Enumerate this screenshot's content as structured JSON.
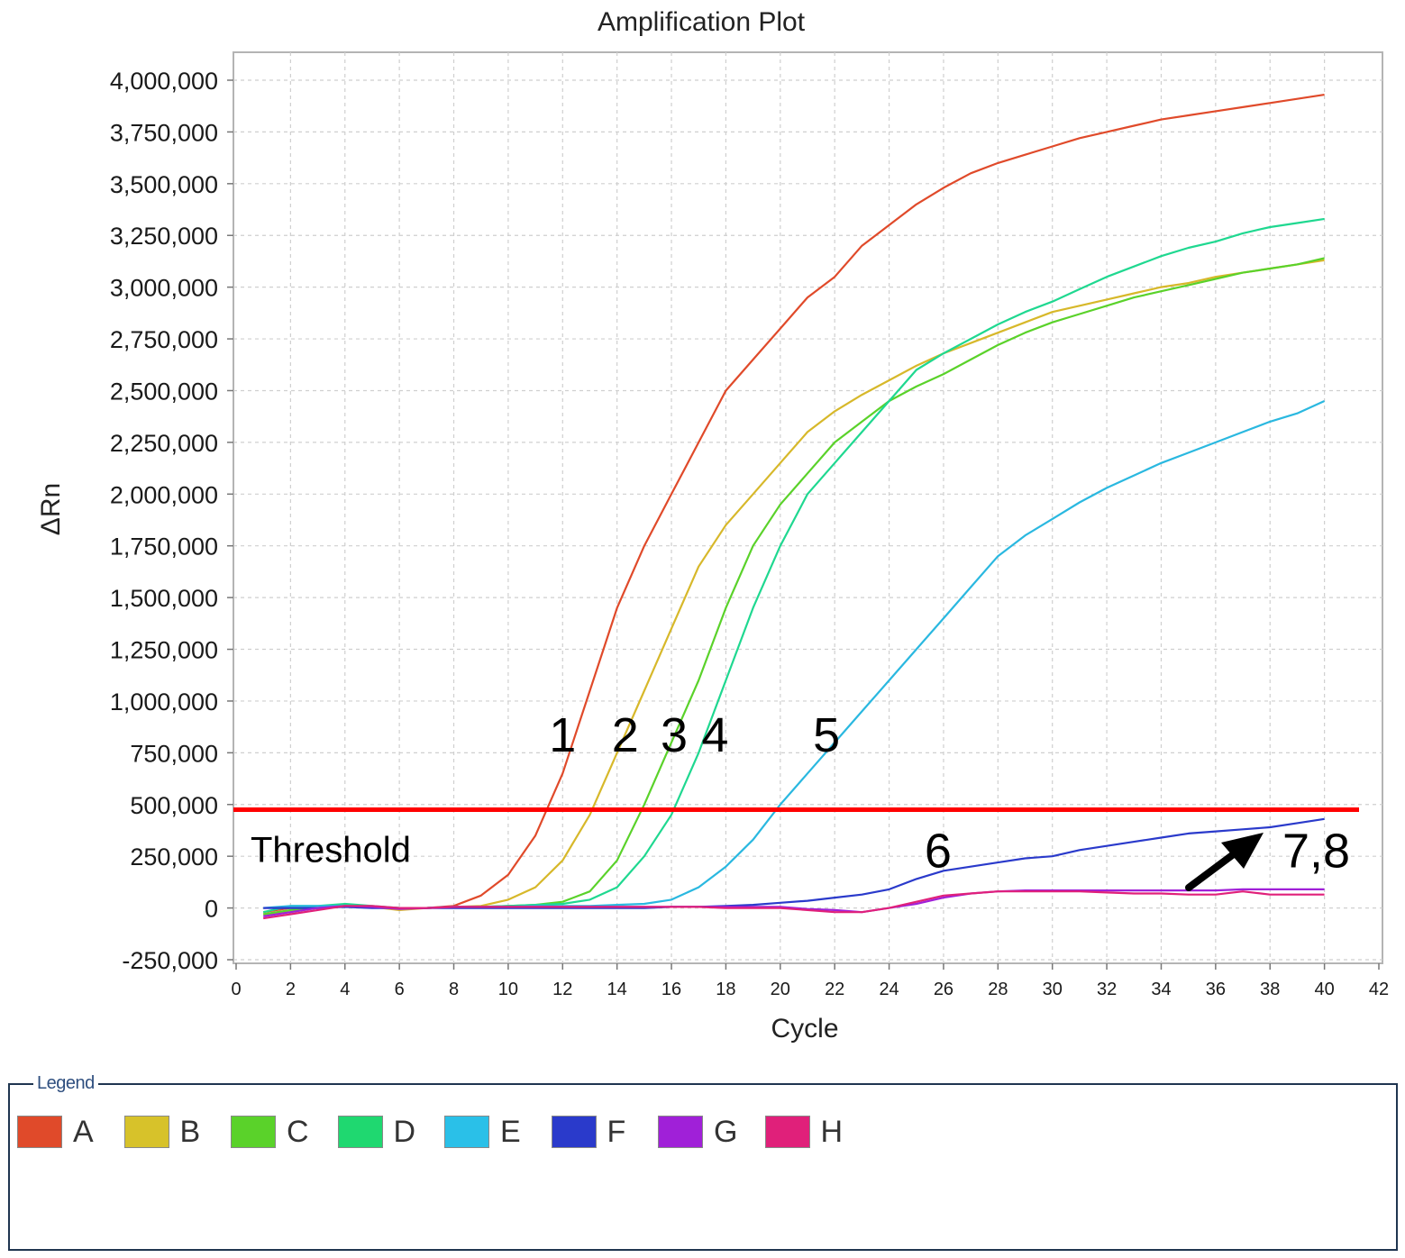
{
  "chart_data": {
    "type": "line",
    "title": "Amplification Plot",
    "xlabel": "Cycle",
    "ylabel": "ΔRn",
    "xlim": [
      0,
      42
    ],
    "ylim": [
      -250000,
      4000000
    ],
    "x_ticks": [
      "0",
      "2",
      "4",
      "6",
      "8",
      "10",
      "12",
      "14",
      "16",
      "18",
      "20",
      "22",
      "24",
      "26",
      "28",
      "30",
      "32",
      "34",
      "36",
      "38",
      "40",
      "42"
    ],
    "y_ticks": [
      "4,000,000",
      "3,750,000",
      "3,500,000",
      "3,250,000",
      "3,000,000",
      "2,750,000",
      "2,500,000",
      "2,250,000",
      "2,000,000",
      "1,750,000",
      "1,500,000",
      "1,250,000",
      "1,000,000",
      "750,000",
      "500,000",
      "250,000",
      "0",
      "-250,000"
    ],
    "grid": true,
    "x": [
      1,
      2,
      3,
      4,
      5,
      6,
      7,
      8,
      9,
      10,
      11,
      12,
      13,
      14,
      15,
      16,
      17,
      18,
      19,
      20,
      21,
      22,
      23,
      24,
      25,
      26,
      27,
      28,
      29,
      30,
      31,
      32,
      33,
      34,
      35,
      36,
      37,
      38,
      39,
      40
    ],
    "series": [
      {
        "name": "A",
        "color": "#e04a2a",
        "values": [
          -20000,
          0,
          0,
          10000,
          5000,
          0,
          0,
          10000,
          60000,
          160000,
          350000,
          650000,
          1050000,
          1450000,
          1750000,
          2000000,
          2250000,
          2500000,
          2650000,
          2800000,
          2950000,
          3050000,
          3200000,
          3300000,
          3400000,
          3480000,
          3550000,
          3600000,
          3640000,
          3680000,
          3720000,
          3750000,
          3780000,
          3810000,
          3830000,
          3850000,
          3870000,
          3890000,
          3910000,
          3930000
        ]
      },
      {
        "name": "B",
        "color": "#d7b82a",
        "values": [
          -30000,
          -20000,
          0,
          10000,
          5000,
          -10000,
          0,
          5000,
          10000,
          40000,
          100000,
          230000,
          450000,
          750000,
          1050000,
          1350000,
          1650000,
          1850000,
          2000000,
          2150000,
          2300000,
          2400000,
          2480000,
          2550000,
          2620000,
          2680000,
          2730000,
          2780000,
          2830000,
          2880000,
          2910000,
          2940000,
          2970000,
          3000000,
          3020000,
          3050000,
          3070000,
          3090000,
          3110000,
          3130000
        ]
      },
      {
        "name": "C",
        "color": "#5ad22a",
        "values": [
          -30000,
          -10000,
          0,
          10000,
          5000,
          0,
          0,
          5000,
          5000,
          10000,
          15000,
          30000,
          80000,
          230000,
          500000,
          800000,
          1100000,
          1450000,
          1750000,
          1950000,
          2100000,
          2250000,
          2350000,
          2450000,
          2520000,
          2580000,
          2650000,
          2720000,
          2780000,
          2830000,
          2870000,
          2910000,
          2950000,
          2980000,
          3010000,
          3040000,
          3070000,
          3090000,
          3110000,
          3140000
        ]
      },
      {
        "name": "D",
        "color": "#1fd890",
        "values": [
          -20000,
          10000,
          10000,
          20000,
          10000,
          0,
          0,
          5000,
          5000,
          10000,
          15000,
          20000,
          40000,
          100000,
          250000,
          450000,
          750000,
          1100000,
          1450000,
          1750000,
          2000000,
          2150000,
          2300000,
          2450000,
          2600000,
          2680000,
          2750000,
          2820000,
          2880000,
          2930000,
          2990000,
          3050000,
          3100000,
          3150000,
          3190000,
          3220000,
          3260000,
          3290000,
          3310000,
          3330000
        ]
      },
      {
        "name": "E",
        "color": "#2ab8e0",
        "values": [
          0,
          10000,
          10000,
          10000,
          5000,
          0,
          0,
          5000,
          5000,
          5000,
          10000,
          10000,
          10000,
          15000,
          20000,
          40000,
          100000,
          200000,
          330000,
          500000,
          650000,
          800000,
          950000,
          1100000,
          1250000,
          1400000,
          1550000,
          1700000,
          1800000,
          1880000,
          1960000,
          2030000,
          2090000,
          2150000,
          2200000,
          2250000,
          2300000,
          2350000,
          2390000,
          2450000
        ]
      },
      {
        "name": "F",
        "color": "#2a3acb",
        "values": [
          0,
          0,
          0,
          5000,
          0,
          0,
          0,
          0,
          0,
          0,
          0,
          0,
          0,
          0,
          0,
          5000,
          5000,
          10000,
          15000,
          25000,
          35000,
          50000,
          65000,
          90000,
          140000,
          180000,
          200000,
          220000,
          240000,
          250000,
          280000,
          300000,
          320000,
          340000,
          360000,
          370000,
          380000,
          390000,
          410000,
          430000
        ]
      },
      {
        "name": "G",
        "color": "#a020d8",
        "values": [
          -40000,
          -20000,
          0,
          10000,
          5000,
          -5000,
          0,
          5000,
          5000,
          5000,
          5000,
          5000,
          5000,
          5000,
          5000,
          5000,
          5000,
          5000,
          5000,
          5000,
          -5000,
          -10000,
          -20000,
          0,
          20000,
          50000,
          70000,
          80000,
          85000,
          85000,
          85000,
          85000,
          85000,
          85000,
          85000,
          85000,
          90000,
          90000,
          90000,
          90000
        ]
      },
      {
        "name": "H",
        "color": "#e0207a",
        "values": [
          -50000,
          -30000,
          -10000,
          10000,
          10000,
          0,
          0,
          5000,
          5000,
          5000,
          5000,
          5000,
          5000,
          5000,
          5000,
          5000,
          5000,
          0,
          0,
          0,
          -10000,
          -20000,
          -20000,
          0,
          30000,
          60000,
          70000,
          80000,
          80000,
          80000,
          80000,
          75000,
          70000,
          70000,
          65000,
          65000,
          80000,
          65000,
          65000,
          65000
        ]
      }
    ],
    "threshold": {
      "value": 475000,
      "label": "Threshold",
      "color": "#ff0000"
    },
    "annotations": [
      {
        "text": "1",
        "x": 12.0,
        "y": 870000
      },
      {
        "text": "2",
        "x": 14.3,
        "y": 870000
      },
      {
        "text": "3",
        "x": 16.1,
        "y": 870000
      },
      {
        "text": "4",
        "x": 17.6,
        "y": 870000
      },
      {
        "text": "5",
        "x": 21.7,
        "y": 870000
      },
      {
        "text": "6",
        "x": 25.8,
        "y": 310000
      },
      {
        "text": "7,8",
        "x": 39.7,
        "y": 310000
      }
    ],
    "legend_placement": "bottom"
  },
  "legend": {
    "title": "Legend",
    "items": [
      {
        "label": "A",
        "color": "#e04a2a"
      },
      {
        "label": "B",
        "color": "#d7c22a"
      },
      {
        "label": "C",
        "color": "#5ad22a"
      },
      {
        "label": "D",
        "color": "#1fd870"
      },
      {
        "label": "E",
        "color": "#2ac0e8"
      },
      {
        "label": "F",
        "color": "#2a3acb"
      },
      {
        "label": "G",
        "color": "#a020d8"
      },
      {
        "label": "H",
        "color": "#e0207a"
      }
    ]
  }
}
